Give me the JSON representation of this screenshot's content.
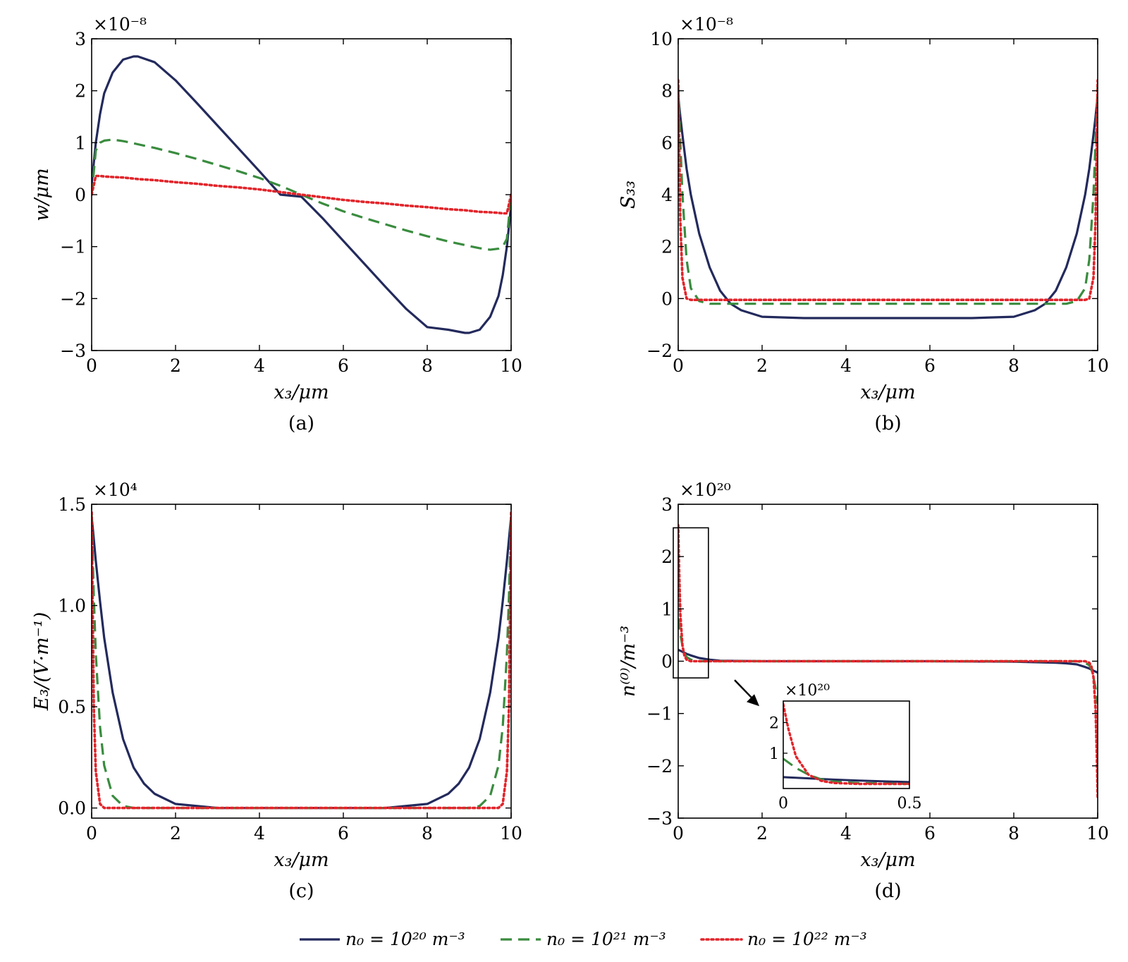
{
  "figure": {
    "legend": [
      {
        "label": "n₀ = 10²⁰ m⁻³",
        "color": "#232a5c",
        "style": "solid"
      },
      {
        "label": "n₀ = 10²¹ m⁻³",
        "color": "#3a8c3f",
        "style": "dashed"
      },
      {
        "label": "n₀ = 10²² m⁻³",
        "color": "#e2242a",
        "style": "dotted"
      }
    ]
  },
  "chart_data": [
    {
      "type": "line",
      "caption": "(a)",
      "xlabel": "x₃/μm",
      "ylabel": "w/μm",
      "multiplier": "×10⁻⁸",
      "xlim": [
        0,
        10
      ],
      "ylim": [
        -3,
        3
      ],
      "xticks": [
        "0",
        "2",
        "4",
        "6",
        "8",
        "10"
      ],
      "yticks": [
        "−3",
        "−2",
        "−1",
        "0",
        "1",
        "2",
        "3"
      ],
      "x": [
        0,
        0.1,
        0.2,
        0.3,
        0.5,
        0.75,
        1.0,
        1.1,
        1.5,
        2,
        2.5,
        3,
        3.5,
        4,
        4.5,
        5,
        5.5,
        6,
        6.5,
        7,
        7.5,
        8,
        8.5,
        8.9,
        9.0,
        9.25,
        9.5,
        9.7,
        9.8,
        9.9,
        10
      ],
      "series": [
        {
          "name": "n₀ = 10²⁰ m⁻³",
          "color": "#232a5c",
          "style": "solid",
          "values": [
            0.2,
            1.0,
            1.55,
            1.95,
            2.35,
            2.6,
            2.66,
            2.66,
            2.55,
            2.2,
            1.77,
            1.33,
            0.89,
            0.45,
            0.0,
            -0.04,
            -0.45,
            -0.89,
            -1.33,
            -1.77,
            -2.2,
            -2.55,
            -2.6,
            -2.66,
            -2.66,
            -2.6,
            -2.35,
            -1.95,
            -1.55,
            -1.0,
            -0.2
          ]
        },
        {
          "name": "n₀ = 10²¹ m⁻³",
          "color": "#3a8c3f",
          "style": "dashed",
          "values": [
            0.0,
            0.85,
            1.0,
            1.04,
            1.06,
            1.03,
            0.99,
            0.97,
            0.9,
            0.8,
            0.69,
            0.57,
            0.45,
            0.32,
            0.17,
            0.0,
            -0.17,
            -0.32,
            -0.45,
            -0.57,
            -0.69,
            -0.8,
            -0.9,
            -0.97,
            -0.99,
            -1.03,
            -1.06,
            -1.04,
            -1.0,
            -0.85,
            0.0
          ]
        },
        {
          "name": "n₀ = 10²² m⁻³",
          "color": "#e2242a",
          "style": "dotted",
          "values": [
            0.0,
            0.36,
            0.36,
            0.35,
            0.34,
            0.33,
            0.31,
            0.3,
            0.28,
            0.24,
            0.21,
            0.17,
            0.14,
            0.1,
            0.05,
            0.0,
            -0.05,
            -0.1,
            -0.14,
            -0.17,
            -0.21,
            -0.24,
            -0.28,
            -0.3,
            -0.31,
            -0.33,
            -0.34,
            -0.35,
            -0.36,
            -0.36,
            0.0
          ]
        }
      ]
    },
    {
      "type": "line",
      "caption": "(b)",
      "xlabel": "x₃/μm",
      "ylabel": "S₃₃",
      "multiplier": "×10⁻⁸",
      "xlim": [
        0,
        10
      ],
      "ylim": [
        -2,
        10
      ],
      "xticks": [
        "0",
        "2",
        "4",
        "6",
        "8",
        "10"
      ],
      "yticks": [
        "−2",
        "0",
        "2",
        "4",
        "6",
        "8",
        "10"
      ],
      "x": [
        0,
        0.05,
        0.1,
        0.2,
        0.3,
        0.5,
        0.75,
        1.0,
        1.25,
        1.5,
        2,
        3,
        4,
        5,
        6,
        7,
        8,
        8.5,
        8.75,
        9.0,
        9.25,
        9.5,
        9.7,
        9.8,
        9.9,
        9.95,
        10
      ],
      "series": [
        {
          "name": "n₀ = 10²⁰ m⁻³",
          "color": "#232a5c",
          "style": "solid",
          "values": [
            7.8,
            7.0,
            6.3,
            5.0,
            4.0,
            2.5,
            1.2,
            0.3,
            -0.2,
            -0.45,
            -0.7,
            -0.75,
            -0.75,
            -0.75,
            -0.75,
            -0.75,
            -0.7,
            -0.45,
            -0.2,
            0.3,
            1.2,
            2.5,
            4.0,
            5.0,
            6.3,
            7.0,
            7.8
          ]
        },
        {
          "name": "n₀ = 10²¹ m⁻³",
          "color": "#3a8c3f",
          "style": "dashed",
          "values": [
            8.2,
            6.0,
            4.0,
            1.5,
            0.4,
            -0.1,
            -0.2,
            -0.2,
            -0.2,
            -0.2,
            -0.2,
            -0.2,
            -0.2,
            -0.2,
            -0.2,
            -0.2,
            -0.2,
            -0.2,
            -0.2,
            -0.2,
            -0.2,
            -0.1,
            0.4,
            1.5,
            4.0,
            6.0,
            8.2
          ]
        },
        {
          "name": "n₀ = 10²² m⁻³",
          "color": "#e2242a",
          "style": "dotted",
          "values": [
            8.4,
            3.0,
            0.8,
            0.0,
            -0.05,
            -0.05,
            -0.05,
            -0.05,
            -0.05,
            -0.05,
            -0.05,
            -0.05,
            -0.05,
            -0.05,
            -0.05,
            -0.05,
            -0.05,
            -0.05,
            -0.05,
            -0.05,
            -0.05,
            -0.05,
            -0.05,
            0.0,
            0.8,
            3.0,
            8.4
          ]
        }
      ]
    },
    {
      "type": "line",
      "caption": "(c)",
      "xlabel": "x₃/μm",
      "ylabel": "E₃/(V·m⁻¹)",
      "multiplier": "×10⁴",
      "xlim": [
        0,
        10
      ],
      "ylim": [
        -0.05,
        1.5
      ],
      "xticks": [
        "0",
        "2",
        "4",
        "6",
        "8",
        "10"
      ],
      "yticks": [
        "0.0",
        "0.5",
        "1.0",
        "1.5"
      ],
      "ytick_values": [
        0,
        0.5,
        1.0,
        1.5
      ],
      "x": [
        0,
        0.05,
        0.1,
        0.2,
        0.3,
        0.5,
        0.75,
        1.0,
        1.25,
        1.5,
        2,
        3,
        4,
        5,
        6,
        7,
        8,
        8.5,
        8.75,
        9.0,
        9.25,
        9.5,
        9.7,
        9.8,
        9.9,
        9.95,
        10
      ],
      "series": [
        {
          "name": "n₀ = 10²⁰ m⁻³",
          "color": "#232a5c",
          "style": "solid",
          "values": [
            1.44,
            1.33,
            1.22,
            1.02,
            0.84,
            0.57,
            0.34,
            0.2,
            0.12,
            0.07,
            0.02,
            0.0,
            0.0,
            0.0,
            0.0,
            0.0,
            0.02,
            0.07,
            0.12,
            0.2,
            0.34,
            0.57,
            0.84,
            1.02,
            1.22,
            1.33,
            1.44
          ]
        },
        {
          "name": "n₀ = 10²¹ m⁻³",
          "color": "#3a8c3f",
          "style": "dashed",
          "values": [
            1.45,
            1.05,
            0.76,
            0.4,
            0.21,
            0.06,
            0.01,
            0.0,
            0.0,
            0.0,
            0.0,
            0.0,
            0.0,
            0.0,
            0.0,
            0.0,
            0.0,
            0.0,
            0.0,
            0.0,
            0.01,
            0.06,
            0.21,
            0.4,
            0.76,
            1.05,
            1.45
          ]
        },
        {
          "name": "n₀ = 10²² m⁻³",
          "color": "#e2242a",
          "style": "dotted",
          "values": [
            1.46,
            0.5,
            0.18,
            0.02,
            0.0,
            0.0,
            0.0,
            0.0,
            0.0,
            0.0,
            0.0,
            0.0,
            0.0,
            0.0,
            0.0,
            0.0,
            0.0,
            0.0,
            0.0,
            0.0,
            0.0,
            0.0,
            0.0,
            0.02,
            0.18,
            0.5,
            1.46
          ]
        }
      ]
    },
    {
      "type": "line",
      "caption": "(d)",
      "xlabel": "x₃/μm",
      "ylabel": "n⁽⁰⁾/m⁻³",
      "multiplier": "×10²⁰",
      "xlim": [
        0,
        10
      ],
      "ylim": [
        -3,
        3
      ],
      "xticks": [
        "0",
        "2",
        "4",
        "6",
        "8",
        "10"
      ],
      "yticks": [
        "−3",
        "−2",
        "−1",
        "0",
        "1",
        "2",
        "3"
      ],
      "x": [
        0,
        0.02,
        0.05,
        0.1,
        0.15,
        0.2,
        0.3,
        0.5,
        0.75,
        1.0,
        2,
        4,
        6,
        8,
        9.0,
        9.25,
        9.5,
        9.7,
        9.8,
        9.85,
        9.9,
        9.95,
        9.98,
        10
      ],
      "series": [
        {
          "name": "n₀ = 10²⁰ m⁻³",
          "color": "#232a5c",
          "style": "solid",
          "values": [
            0.22,
            0.21,
            0.2,
            0.18,
            0.16,
            0.14,
            0.11,
            0.06,
            0.03,
            0.01,
            0.0,
            0.0,
            0.0,
            -0.01,
            -0.03,
            -0.04,
            -0.06,
            -0.11,
            -0.14,
            -0.16,
            -0.18,
            -0.2,
            -0.21,
            -0.22
          ]
        },
        {
          "name": "n₀ = 10²¹ m⁻³",
          "color": "#3a8c3f",
          "style": "dashed",
          "values": [
            0.82,
            0.7,
            0.52,
            0.3,
            0.15,
            0.08,
            0.03,
            0.0,
            0.0,
            0.0,
            0.0,
            0.0,
            0.0,
            0.0,
            0.0,
            0.0,
            0.0,
            -0.03,
            -0.08,
            -0.15,
            -0.3,
            -0.52,
            -0.7,
            -0.82
          ]
        },
        {
          "name": "n₀ = 10²² m⁻³",
          "color": "#e2242a",
          "style": "dotted",
          "values": [
            2.6,
            1.8,
            0.9,
            0.3,
            0.1,
            0.03,
            0.0,
            0.0,
            0.0,
            0.0,
            0.0,
            0.0,
            0.0,
            0.0,
            0.0,
            0.0,
            0.0,
            0.0,
            -0.03,
            -0.1,
            -0.3,
            -0.9,
            -1.8,
            -2.6
          ]
        }
      ],
      "inset": {
        "multiplier": "×10²⁰",
        "xlim": [
          0,
          0.5
        ],
        "ylim": [
          -0.15,
          2.7
        ],
        "xticks": [
          "0",
          "0.5"
        ],
        "yticks": [
          "1",
          "2"
        ],
        "ytick_values": [
          1,
          2
        ]
      }
    }
  ]
}
